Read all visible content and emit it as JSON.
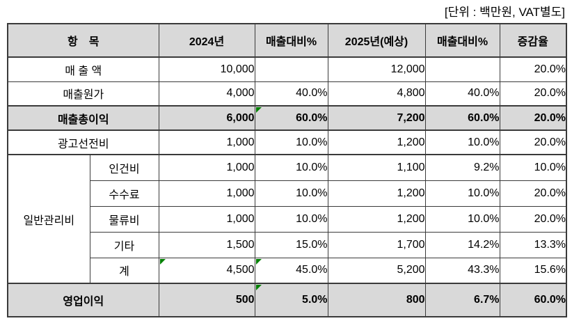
{
  "unit_note": "[단위 : 백만원, VAT별도]",
  "colors": {
    "header_fill": "#d9d9d9",
    "emphasis_row_fill": "#d9d9d9",
    "border": "#3a3a3a",
    "marker_green": "#008000",
    "text": "#000000",
    "background": "#ffffff"
  },
  "table": {
    "headers": [
      "항　목",
      "2024년",
      "매출대비%",
      "2025년(예상)",
      "매출대비%",
      "증감율"
    ],
    "group_label": "일반관리비",
    "rows": [
      {
        "label": "매 출 액",
        "values": [
          "10,000",
          "",
          "12,000",
          "",
          "20.0%"
        ],
        "emphasis": false,
        "markers": []
      },
      {
        "label": "매출원가",
        "values": [
          "4,000",
          "40.0%",
          "4,800",
          "40.0%",
          "20.0%"
        ],
        "emphasis": false,
        "markers": []
      },
      {
        "label": "매출총이익",
        "values": [
          "6,000",
          "60.0%",
          "7,200",
          "60.0%",
          "20.0%"
        ],
        "emphasis": true,
        "markers": [
          1
        ]
      },
      {
        "label": "광고선전비",
        "values": [
          "1,000",
          "10.0%",
          "1,200",
          "10.0%",
          "20.0%"
        ],
        "emphasis": false,
        "markers": []
      },
      {
        "label": "인건비",
        "values": [
          "1,000",
          "10.0%",
          "1,100",
          "9.2%",
          "10.0%"
        ],
        "emphasis": false,
        "markers": [],
        "group": "일반관리비"
      },
      {
        "label": "수수료",
        "values": [
          "1,000",
          "10.0%",
          "1,200",
          "10.0%",
          "20.0%"
        ],
        "emphasis": false,
        "markers": [],
        "group": "일반관리비"
      },
      {
        "label": "물류비",
        "values": [
          "1,000",
          "10.0%",
          "1,200",
          "10.0%",
          "20.0%"
        ],
        "emphasis": false,
        "markers": [],
        "group": "일반관리비"
      },
      {
        "label": "기타",
        "values": [
          "1,500",
          "15.0%",
          "1,700",
          "14.2%",
          "13.3%"
        ],
        "emphasis": false,
        "markers": [],
        "group": "일반관리비"
      },
      {
        "label": "계",
        "values": [
          "4,500",
          "45.0%",
          "5,200",
          "43.3%",
          "15.6%"
        ],
        "emphasis": false,
        "markers": [
          0,
          1
        ],
        "group": "일반관리비"
      },
      {
        "label": "영업이익",
        "values": [
          "500",
          "5.0%",
          "800",
          "6.7%",
          "60.0%"
        ],
        "emphasis": true,
        "markers": [
          1
        ]
      }
    ]
  }
}
